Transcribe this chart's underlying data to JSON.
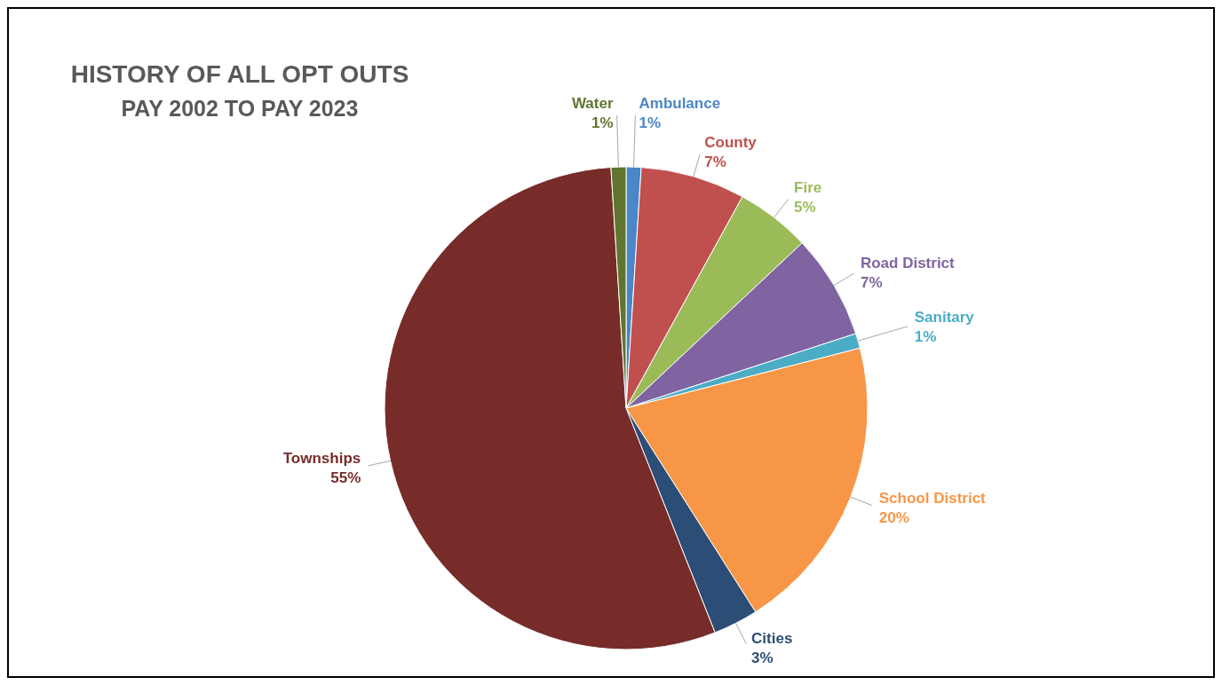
{
  "chart_data": {
    "type": "pie",
    "title": "HISTORY OF ALL OPT OUTS",
    "subtitle": "PAY 2002 TO PAY 2023",
    "categories": [
      "Ambulance",
      "County",
      "Fire",
      "Road District",
      "Sanitary",
      "School District",
      "Cities",
      "Townships",
      "Water"
    ],
    "values": [
      1,
      7,
      5,
      7,
      1,
      20,
      3,
      55,
      1
    ],
    "value_labels": [
      "1%",
      "7%",
      "5%",
      "7%",
      "1%",
      "20%",
      "3%",
      "55%",
      "1%"
    ],
    "colors": [
      "#4a86c8",
      "#c0504d",
      "#9bbb59",
      "#8064a2",
      "#4bacc6",
      "#f79646",
      "#2c4d75",
      "#772c2a",
      "#5f7530"
    ]
  }
}
